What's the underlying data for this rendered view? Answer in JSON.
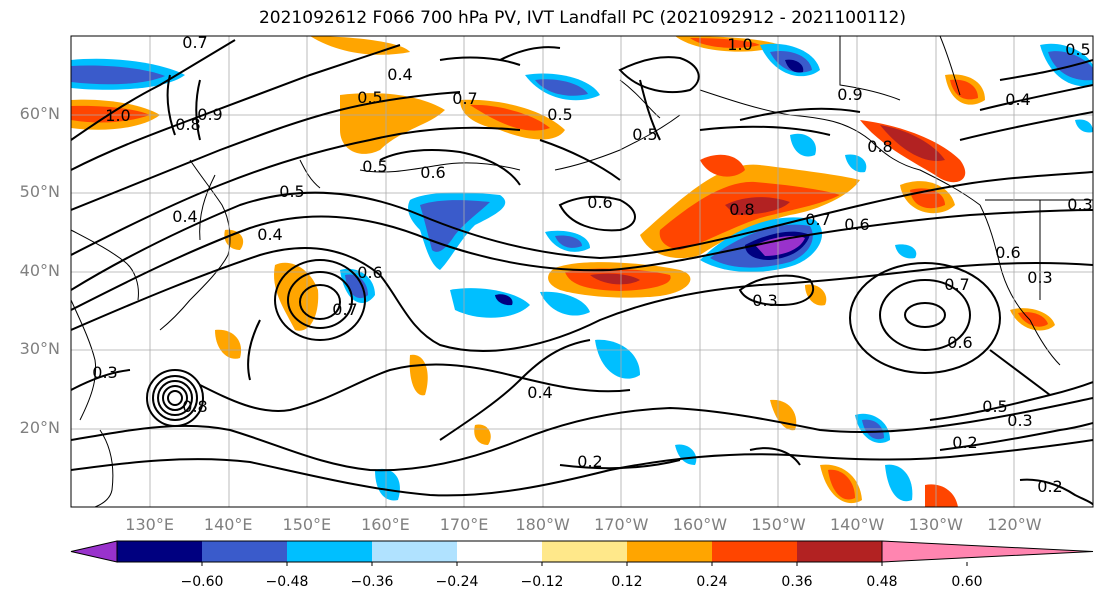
{
  "title": "2021092612 F066 700 hPa PV, IVT Landfall PC (2021092912 - 2021100112)",
  "map": {
    "lat_labels": [
      {
        "label": "60°N",
        "lat": 60
      },
      {
        "label": "50°N",
        "lat": 50
      },
      {
        "label": "40°N",
        "lat": 40
      },
      {
        "label": "30°N",
        "lat": 30
      },
      {
        "label": "20°N",
        "lat": 20
      }
    ],
    "lon_labels": [
      "130°E",
      "140°E",
      "150°E",
      "160°E",
      "170°E",
      "180°W",
      "170°W",
      "160°W",
      "150°W",
      "140°W",
      "130°W",
      "120°W"
    ],
    "lon_values": [
      130,
      140,
      150,
      160,
      170,
      180,
      190,
      200,
      210,
      220,
      230,
      240
    ],
    "contour_labels": [
      "0.7",
      "1.0",
      "0.8",
      "0.9",
      "0.4",
      "0.5",
      "0.7",
      "0.5",
      "0.6",
      "0.5",
      "0.4",
      "0.5",
      "0.6",
      "0.4",
      "0.7",
      "0.6",
      "0.8",
      "0.6",
      "0.3",
      "0.5",
      "0.7",
      "0.8",
      "0.9",
      "1.0",
      "0.5",
      "0.4",
      "0.3",
      "0.3",
      "0.6",
      "0.7",
      "0.6",
      "0.4",
      "0.2",
      "0.5",
      "0.3",
      "0.2",
      "0.2",
      "0.8",
      "0.3"
    ]
  },
  "colorbar": {
    "colors": [
      "#9932cc",
      "#000080",
      "#3a5bcb",
      "#00bfff",
      "#b0e2ff",
      "#ffffff",
      "#ffe88a",
      "#ffa500",
      "#ff4500",
      "#b22222",
      "#ff85b0"
    ],
    "tick_labels": [
      "−0.60",
      "−0.48",
      "−0.36",
      "−0.24",
      "−0.12",
      "0.12",
      "0.24",
      "0.36",
      "0.48",
      "0.60"
    ]
  },
  "colors": {
    "orange": "#ffa500",
    "red": "#ff4500",
    "darkred": "#b22222",
    "lightblue": "#00bfff",
    "blue": "#3a5bcb",
    "navy": "#000080",
    "purple": "#9932cc",
    "yellow": "#ffe88a"
  }
}
